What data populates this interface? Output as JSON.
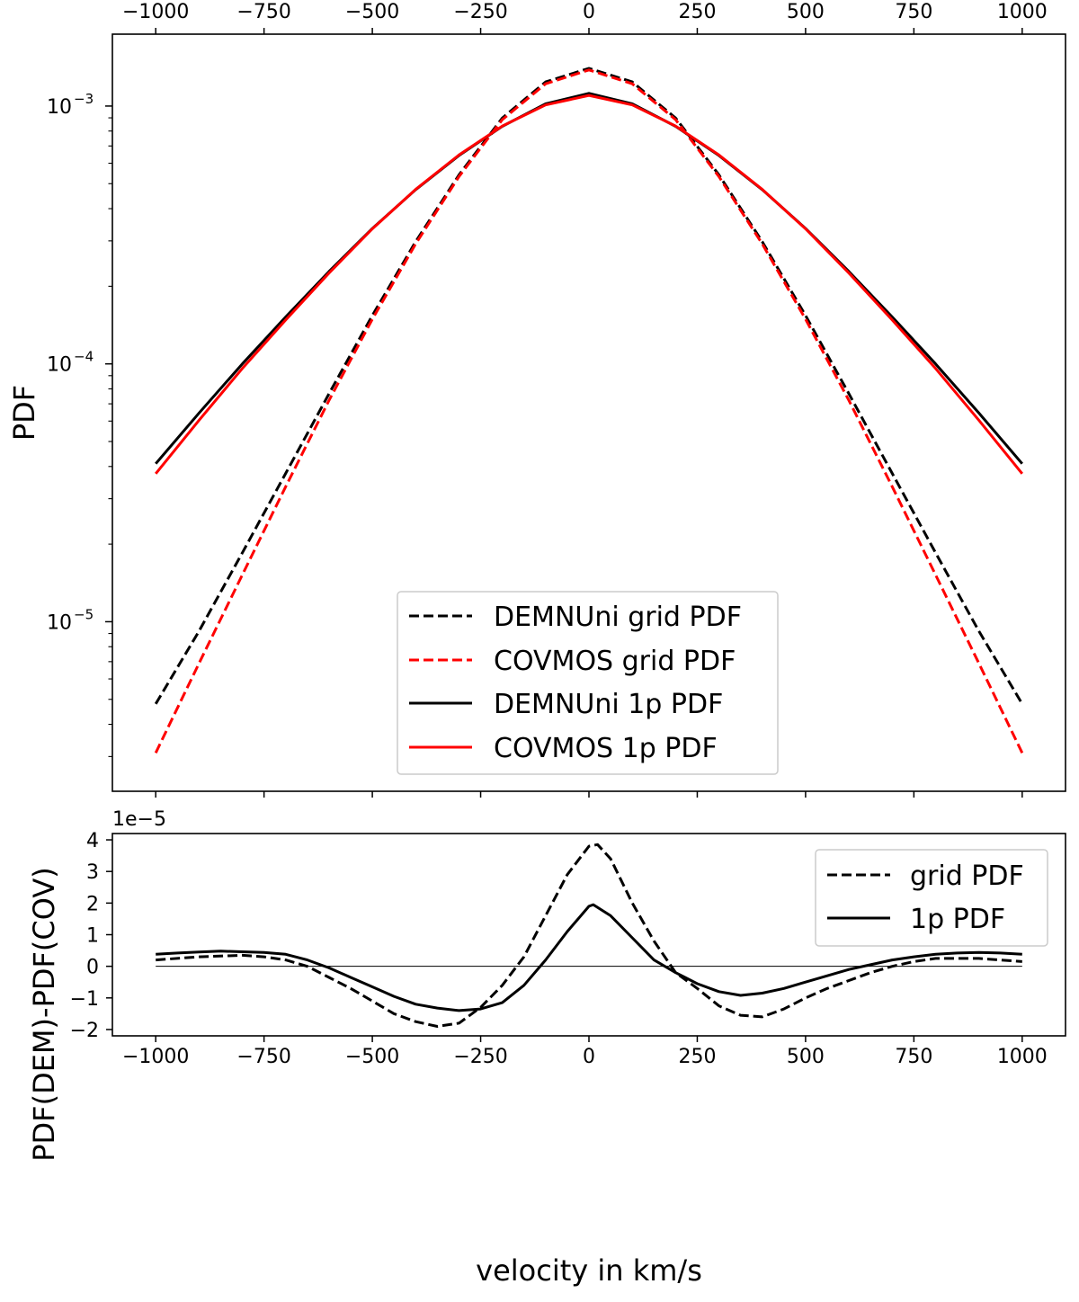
{
  "chart_data": [
    {
      "id": "top",
      "type": "line",
      "yscale": "log",
      "ylabel": "PDF",
      "xlabel": "",
      "xlim": [
        -1100,
        1100
      ],
      "ylim": [
        2.2e-06,
        0.0019
      ],
      "xticks_top": [
        -1000,
        -750,
        -500,
        -250,
        0,
        250,
        500,
        750,
        1000
      ],
      "xtick_labels_top": [
        "−1000",
        "−750",
        "−500",
        "−250",
        "0",
        "250",
        "500",
        "750",
        "1000"
      ],
      "ytick_major": [
        1e-05,
        0.0001,
        0.001
      ],
      "ytick_labels": [
        {
          "base": "10",
          "exp": "−5"
        },
        {
          "base": "10",
          "exp": "−4"
        },
        {
          "base": "10",
          "exp": "−3"
        }
      ],
      "legend_position": "lower-center",
      "legend": [
        "DEMNUni grid PDF",
        "COVMOS grid PDF",
        "DEMNUni 1p PDF",
        "COVMOS 1p PDF"
      ],
      "series": [
        {
          "name": "DEMNUni grid PDF",
          "color": "#000000",
          "style": "dashed",
          "x": [
            -1000,
            -900,
            -800,
            -700,
            -600,
            -500,
            -400,
            -300,
            -200,
            -100,
            0,
            100,
            200,
            300,
            400,
            500,
            600,
            700,
            800,
            900,
            1000
          ],
          "y": [
            4.8e-06,
            9.2e-06,
            1.85e-05,
            3.76e-05,
            7.66e-05,
            0.000154,
            0.000298,
            0.000541,
            0.000898,
            0.00124,
            0.0014,
            0.00124,
            0.000898,
            0.000541,
            0.000298,
            0.000154,
            7.66e-05,
            3.76e-05,
            1.85e-05,
            9.2e-06,
            4.8e-06
          ]
        },
        {
          "name": "COVMOS grid PDF",
          "color": "#ff0000",
          "style": "dashed",
          "x": [
            -1000,
            -900,
            -800,
            -700,
            -600,
            -500,
            -400,
            -300,
            -200,
            -100,
            0,
            100,
            200,
            300,
            400,
            500,
            600,
            700,
            800,
            900,
            1000
          ],
          "y": [
            3.1e-06,
            6.9e-06,
            1.52e-05,
            3.34e-05,
            7.22e-05,
            0.000149,
            0.000292,
            0.000533,
            0.000885,
            0.00122,
            0.00138,
            0.00122,
            0.000885,
            0.000533,
            0.000292,
            0.000149,
            7.22e-05,
            3.34e-05,
            1.52e-05,
            6.9e-06,
            3.1e-06
          ]
        },
        {
          "name": "DEMNUni 1p PDF",
          "color": "#000000",
          "style": "solid",
          "x": [
            -1000,
            -900,
            -800,
            -700,
            -600,
            -500,
            -400,
            -300,
            -200,
            -100,
            0,
            100,
            200,
            300,
            400,
            500,
            600,
            700,
            800,
            900,
            1000
          ],
          "y": [
            4.1e-05,
            6.45e-05,
            0.0001,
            0.000152,
            0.000228,
            0.000335,
            0.000474,
            0.000643,
            0.000834,
            0.00102,
            0.00112,
            0.00102,
            0.000834,
            0.000643,
            0.000474,
            0.000335,
            0.000228,
            0.000152,
            0.0001,
            6.45e-05,
            4.1e-05
          ]
        },
        {
          "name": "COVMOS 1p PDF",
          "color": "#ff0000",
          "style": "solid",
          "x": [
            -1000,
            -900,
            -800,
            -700,
            -600,
            -500,
            -400,
            -300,
            -200,
            -100,
            0,
            100,
            200,
            300,
            400,
            500,
            600,
            700,
            800,
            900,
            1000
          ],
          "y": [
            3.75e-05,
            6.05e-05,
            9.6e-05,
            0.000148,
            0.000225,
            0.000334,
            0.000475,
            0.000646,
            0.000836,
            0.00101,
            0.0011,
            0.00101,
            0.000836,
            0.000646,
            0.000475,
            0.000334,
            0.000225,
            0.000148,
            9.6e-05,
            6.05e-05,
            3.75e-05
          ]
        }
      ]
    },
    {
      "id": "bottom",
      "type": "line",
      "xlabel": "velocity in km/s",
      "ylabel": "PDF(DEM)-PDF(COV)",
      "offset_text": "1e−5",
      "xlim": [
        -1100,
        1100
      ],
      "ylim": [
        -2.2,
        4.2
      ],
      "xticks": [
        -1000,
        -750,
        -500,
        -250,
        0,
        250,
        500,
        750,
        1000
      ],
      "xtick_labels": [
        "−1000",
        "−750",
        "−500",
        "−250",
        "0",
        "250",
        "500",
        "750",
        "1000"
      ],
      "yticks": [
        -2,
        -1,
        0,
        1,
        2,
        3,
        4
      ],
      "ytick_labels": [
        "−2",
        "−1",
        "0",
        "1",
        "2",
        "3",
        "4"
      ],
      "zero_line": true,
      "legend_position": "top-right",
      "legend": [
        "grid PDF",
        "1p PDF"
      ],
      "series": [
        {
          "name": "grid PDF",
          "color": "#000000",
          "style": "dashed",
          "x": [
            -1000,
            -900,
            -800,
            -750,
            -700,
            -650,
            -600,
            -550,
            -500,
            -450,
            -400,
            -350,
            -300,
            -250,
            -200,
            -150,
            -100,
            -50,
            0,
            20,
            50,
            100,
            150,
            200,
            250,
            300,
            350,
            400,
            450,
            500,
            550,
            600,
            650,
            700,
            750,
            800,
            900,
            1000
          ],
          "y": [
            0.2,
            0.3,
            0.35,
            0.3,
            0.2,
            0.0,
            -0.35,
            -0.7,
            -1.1,
            -1.5,
            -1.75,
            -1.9,
            -1.8,
            -1.3,
            -0.6,
            0.3,
            1.6,
            2.9,
            3.8,
            3.85,
            3.4,
            2.0,
            0.8,
            -0.2,
            -0.7,
            -1.25,
            -1.55,
            -1.6,
            -1.35,
            -1.0,
            -0.7,
            -0.45,
            -0.2,
            0.0,
            0.15,
            0.25,
            0.25,
            0.15
          ]
        },
        {
          "name": "1p PDF",
          "color": "#000000",
          "style": "solid",
          "x": [
            -1000,
            -950,
            -900,
            -850,
            -800,
            -750,
            -700,
            -650,
            -600,
            -550,
            -500,
            -450,
            -400,
            -350,
            -300,
            -250,
            -200,
            -150,
            -100,
            -50,
            0,
            10,
            50,
            100,
            150,
            200,
            250,
            300,
            350,
            400,
            450,
            500,
            550,
            600,
            650,
            700,
            750,
            800,
            850,
            900,
            950,
            1000
          ],
          "y": [
            0.38,
            0.42,
            0.45,
            0.48,
            0.46,
            0.44,
            0.38,
            0.2,
            -0.05,
            -0.35,
            -0.65,
            -0.95,
            -1.2,
            -1.32,
            -1.4,
            -1.35,
            -1.15,
            -0.6,
            0.2,
            1.1,
            1.9,
            1.95,
            1.6,
            0.9,
            0.2,
            -0.2,
            -0.55,
            -0.8,
            -0.92,
            -0.85,
            -0.7,
            -0.5,
            -0.3,
            -0.1,
            0.05,
            0.2,
            0.3,
            0.38,
            0.42,
            0.44,
            0.42,
            0.38
          ]
        }
      ]
    }
  ]
}
